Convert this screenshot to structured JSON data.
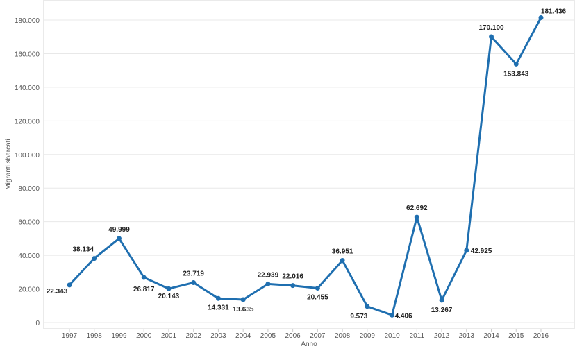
{
  "chart_data": {
    "type": "line",
    "xlabel": "Anno",
    "ylabel": "Migranti sbarcati",
    "ylim": [
      0,
      190000
    ],
    "yticks": [
      0,
      20000,
      40000,
      60000,
      80000,
      100000,
      120000,
      140000,
      160000,
      180000
    ],
    "ytick_labels": [
      "0",
      "20.000",
      "40.000",
      "60.000",
      "80.000",
      "100.000",
      "120.000",
      "140.000",
      "160.000",
      "180.000"
    ],
    "grid": true,
    "colors": {
      "series": "#1f6fb0"
    },
    "categories": [
      "1997",
      "1998",
      "1999",
      "2000",
      "2001",
      "2002",
      "2003",
      "2004",
      "2005",
      "2006",
      "2007",
      "2008",
      "2009",
      "2010",
      "2011",
      "2012",
      "2013",
      "2014",
      "2015",
      "2016"
    ],
    "series": [
      {
        "values": [
          22343,
          38134,
          49999,
          26817,
          20143,
          23719,
          14331,
          13635,
          22939,
          22016,
          20455,
          36951,
          9573,
          4406,
          62692,
          13267,
          42925,
          170100,
          153843,
          181436
        ],
        "labels": [
          "22.343",
          "38.134",
          "49.999",
          "26.817",
          "20.143",
          "23.719",
          "14.331",
          "13.635",
          "22.939",
          "22.016",
          "20.455",
          "36.951",
          "9.573",
          "4.406",
          "62.692",
          "13.267",
          "42.925",
          "170.100",
          "153.843",
          "181.436"
        ]
      }
    ]
  }
}
